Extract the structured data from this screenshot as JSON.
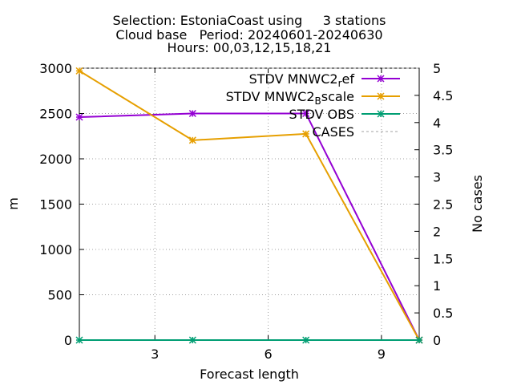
{
  "chart_data": {
    "type": "line",
    "title_lines": [
      "Selection: EstoniaCoast using     3 stations",
      "Cloud base   Period: 20240601-20240630",
      "Hours: 00,03,12,15,18,21"
    ],
    "xlabel": "Forecast length",
    "ylabel": "m",
    "y2label": "No cases",
    "xlim": [
      1,
      10
    ],
    "ylim": [
      0,
      3000
    ],
    "y2lim": [
      0,
      5
    ],
    "xticks": [
      3,
      6,
      9
    ],
    "yticks": [
      0,
      500,
      1000,
      1500,
      2000,
      2500,
      3000
    ],
    "y2ticks": [
      "0",
      "0.5",
      "1",
      "1.5",
      "2",
      "2.5",
      "3",
      "3.5",
      "4",
      "4.5",
      "5"
    ],
    "grid": true,
    "legend_position": "top-right",
    "series": [
      {
        "name": "STDV MNWC2_ref",
        "legend_label": {
          "main": "STDV MNWC2",
          "sub": "r",
          "tail": "ef"
        },
        "color": "#9400d3",
        "axis": "y",
        "x": [
          1,
          4,
          7,
          10
        ],
        "y": [
          2460,
          2500,
          2500,
          0
        ]
      },
      {
        "name": "STDV MNWC2_Bscale",
        "legend_label": {
          "main": "STDV MNWC2",
          "sub": "B",
          "tail": "scale"
        },
        "color": "#e69f00",
        "axis": "y",
        "x": [
          1,
          4,
          7,
          10
        ],
        "y": [
          2970,
          2205,
          2275,
          0
        ]
      },
      {
        "name": "STDV OBS",
        "legend_label": {
          "main": "STDV OBS",
          "sub": "",
          "tail": ""
        },
        "color": "#009e73",
        "axis": "y",
        "x": [
          1,
          4,
          7,
          10
        ],
        "y": [
          0,
          0,
          0,
          0
        ]
      },
      {
        "name": "CASES",
        "legend_label": {
          "main": "CASES",
          "sub": "",
          "tail": ""
        },
        "color": "#a0a0a0",
        "axis": "y2",
        "dashed": true,
        "x": [
          1,
          4,
          7,
          10
        ],
        "y": [
          5,
          5,
          5,
          5
        ]
      }
    ]
  }
}
